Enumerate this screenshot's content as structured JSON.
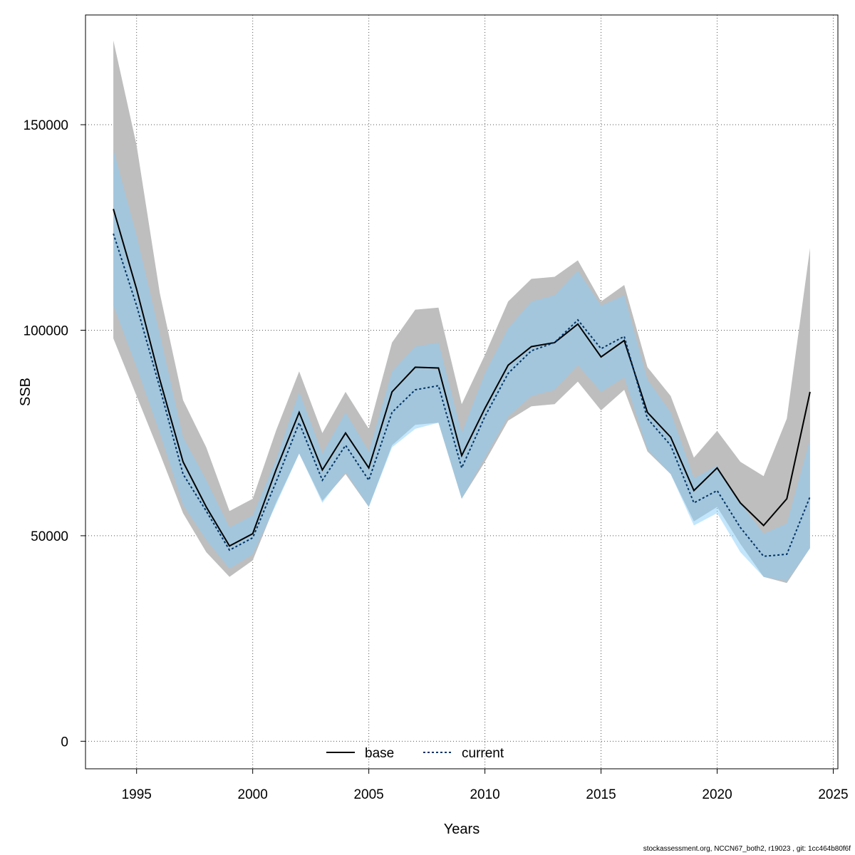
{
  "chart_data": {
    "type": "line",
    "title": "",
    "xlabel": "Years",
    "ylabel": "SSB",
    "xlim": [
      1992.8,
      2025.2
    ],
    "ylim": [
      -6700,
      176700
    ],
    "x_ticks": [
      1995,
      2000,
      2005,
      2010,
      2015,
      2020,
      2025
    ],
    "y_ticks": [
      0,
      50000,
      100000,
      150000
    ],
    "grid": true,
    "legend": {
      "placement": "bottom-center",
      "entries": [
        "base",
        "current"
      ]
    },
    "x": [
      1994,
      1995,
      1996,
      1997,
      1998,
      1999,
      2000,
      2001,
      2002,
      2003,
      2004,
      2005,
      2006,
      2007,
      2008,
      2009,
      2010,
      2011,
      2012,
      2013,
      2014,
      2015,
      2016,
      2017,
      2018,
      2019,
      2020,
      2021,
      2022,
      2023,
      2024
    ],
    "series": [
      {
        "name": "base",
        "color": "#000000",
        "band_color": "#bebebe",
        "values": [
          129500,
          110000,
          88000,
          68000,
          57000,
          47500,
          50500,
          66000,
          80000,
          66000,
          75000,
          66500,
          85000,
          91000,
          90800,
          69500,
          81000,
          91500,
          96000,
          97000,
          101500,
          93500,
          97500,
          80000,
          74000,
          61000,
          66500,
          58000,
          52500,
          59000,
          85000
        ],
        "lower": [
          98000,
          84000,
          70000,
          55500,
          46000,
          40000,
          44000,
          58000,
          70000,
          58500,
          65000,
          57000,
          72000,
          77000,
          77500,
          59000,
          68000,
          78000,
          81500,
          82000,
          87500,
          80500,
          85500,
          70500,
          65000,
          53500,
          57000,
          48000,
          40000,
          38500,
          47000
        ],
        "upper": [
          170500,
          145000,
          109000,
          83000,
          71500,
          56000,
          59000,
          75500,
          90000,
          75000,
          85000,
          76000,
          97000,
          105000,
          105500,
          82000,
          94000,
          107000,
          112500,
          113000,
          117000,
          107000,
          111000,
          91000,
          84000,
          69000,
          75500,
          68000,
          64500,
          78500,
          120000
        ]
      },
      {
        "name": "current",
        "color": "#003366",
        "band_color": "#87cefa",
        "values": [
          123500,
          106000,
          86000,
          65000,
          56000,
          46500,
          49500,
          63000,
          77500,
          63500,
          72000,
          63500,
          80000,
          85500,
          86500,
          66500,
          79000,
          89500,
          95000,
          97000,
          102500,
          95500,
          98500,
          78500,
          72000,
          58000,
          61000,
          52000,
          45000,
          45500,
          59500
        ],
        "lower": [
          106000,
          91000,
          75000,
          57500,
          49000,
          42000,
          45500,
          57500,
          70000,
          58000,
          65500,
          57000,
          71500,
          76000,
          77500,
          59000,
          69000,
          79000,
          84000,
          85500,
          91500,
          85000,
          88500,
          71000,
          65000,
          52500,
          55500,
          46000,
          40000,
          39000,
          47000
        ],
        "upper": [
          144000,
          123000,
          99000,
          74000,
          63500,
          52000,
          55000,
          68500,
          85000,
          70000,
          80000,
          70500,
          90000,
          96000,
          97000,
          75000,
          89500,
          100500,
          107000,
          108500,
          114500,
          106000,
          108500,
          88000,
          80000,
          64000,
          67000,
          58000,
          50500,
          53000,
          73500
        ]
      }
    ]
  },
  "footer_text": "stockassessment.org, NCCN67_both2, r19023 , git: 1cc464b80f6f"
}
